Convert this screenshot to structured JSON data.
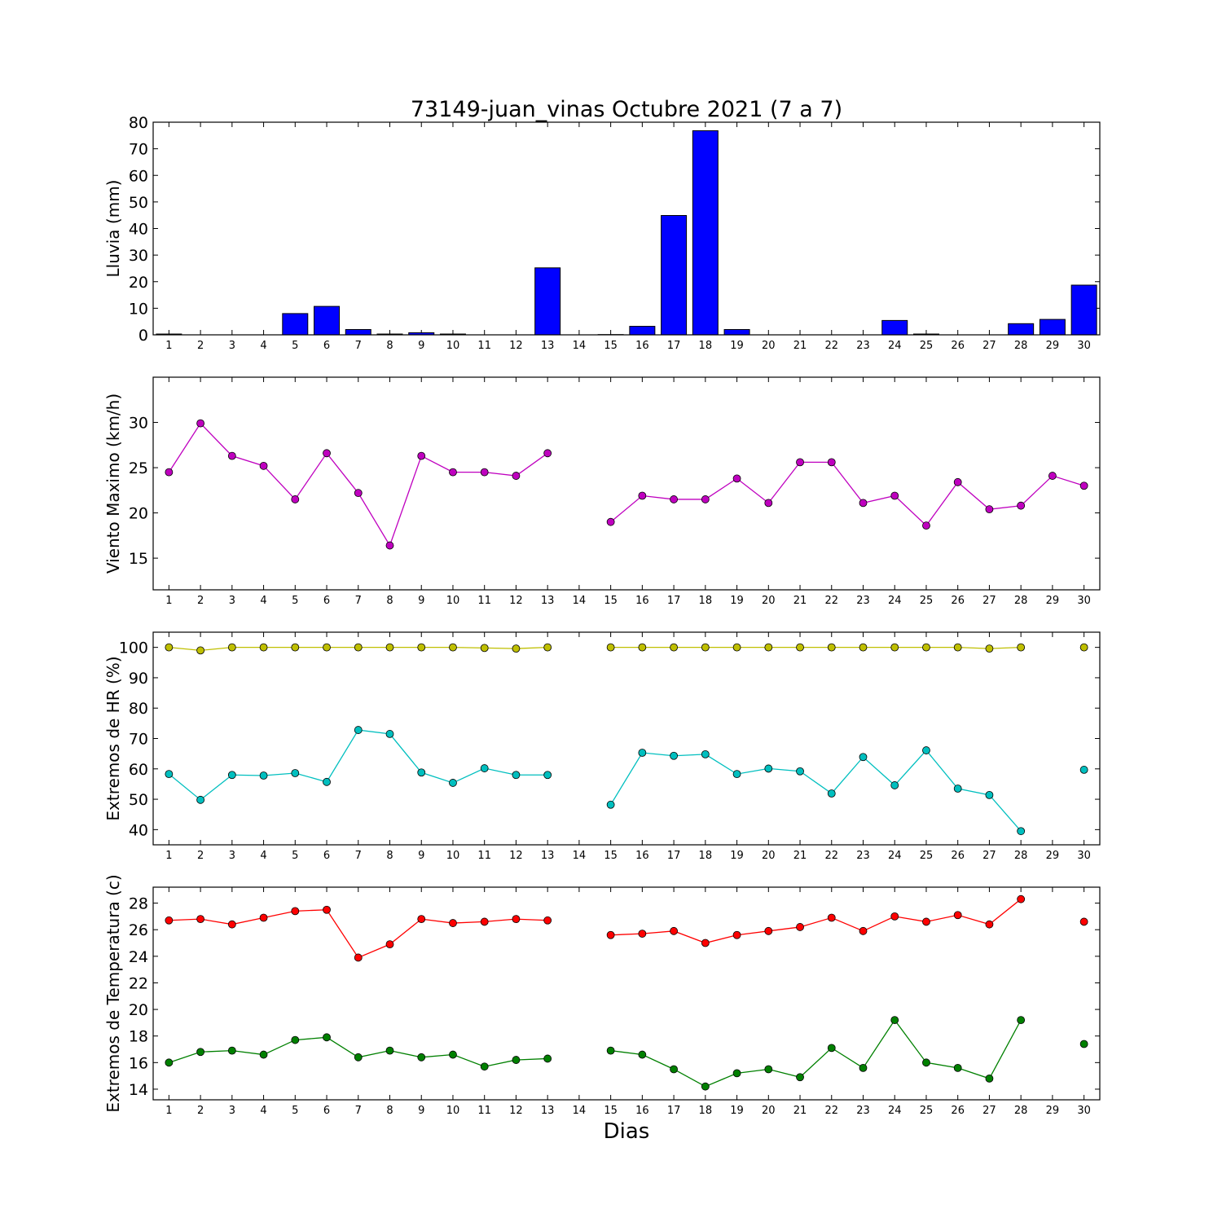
{
  "title": "73149-juan_vinas Octubre 2021  (7 a 7)",
  "xlabel": "Dias",
  "chart_data": [
    {
      "type": "bar",
      "ylabel": "Lluvia (mm)",
      "xlim": [
        0.5,
        30.5
      ],
      "ylim": [
        0,
        80
      ],
      "yticks": [
        0,
        10,
        20,
        30,
        40,
        50,
        60,
        70,
        80
      ],
      "x": [
        1,
        2,
        3,
        4,
        5,
        6,
        7,
        8,
        9,
        10,
        11,
        12,
        13,
        14,
        15,
        16,
        17,
        18,
        19,
        20,
        21,
        22,
        23,
        24,
        25,
        26,
        27,
        28,
        29,
        30
      ],
      "series": [
        {
          "color": "#0000ff",
          "values": [
            0.3,
            0,
            0,
            0,
            8.0,
            10.7,
            2.0,
            0.3,
            0.8,
            0.3,
            0,
            0,
            25.2,
            0,
            0.1,
            3.2,
            44.9,
            76.8,
            2.0,
            0,
            0,
            0,
            0,
            5.4,
            0.3,
            0,
            0,
            4.2,
            5.8,
            18.7
          ]
        }
      ]
    },
    {
      "type": "line",
      "ylabel": "Viento Maximo (km/h)",
      "xlim": [
        0.5,
        30.5
      ],
      "ylim": [
        11.5,
        35
      ],
      "yticks": [
        15,
        20,
        25,
        30
      ],
      "x": [
        1,
        2,
        3,
        4,
        5,
        6,
        7,
        8,
        9,
        10,
        11,
        12,
        13,
        14,
        15,
        16,
        17,
        18,
        19,
        20,
        21,
        22,
        23,
        24,
        25,
        26,
        27,
        28,
        29,
        30
      ],
      "series": [
        {
          "color": "#bf00bf",
          "values": [
            24.5,
            29.9,
            26.3,
            25.2,
            21.5,
            26.6,
            22.2,
            16.4,
            26.3,
            24.5,
            24.5,
            24.1,
            26.6,
            null,
            19.0,
            21.9,
            21.5,
            21.5,
            23.8,
            21.1,
            25.6,
            25.6,
            21.1,
            21.9,
            18.6,
            23.4,
            20.4,
            20.8,
            24.1,
            23.0
          ]
        }
      ]
    },
    {
      "type": "line",
      "ylabel": "Extremos de HR (%)",
      "xlim": [
        0.5,
        30.5
      ],
      "ylim": [
        35,
        105
      ],
      "yticks": [
        40,
        50,
        60,
        70,
        80,
        90,
        100
      ],
      "x": [
        1,
        2,
        3,
        4,
        5,
        6,
        7,
        8,
        9,
        10,
        11,
        12,
        13,
        14,
        15,
        16,
        17,
        18,
        19,
        20,
        21,
        22,
        23,
        24,
        25,
        26,
        27,
        28,
        29,
        30
      ],
      "series": [
        {
          "color": "#bfbf00",
          "values": [
            100,
            99,
            100,
            100,
            100,
            100,
            100,
            100,
            100,
            100,
            99.8,
            99.6,
            100,
            null,
            100,
            100,
            100,
            100,
            100,
            100,
            100,
            100,
            100,
            100,
            100,
            100,
            99.6,
            100,
            null,
            100
          ]
        },
        {
          "color": "#00bfbf",
          "values": [
            58.3,
            49.8,
            58.0,
            57.8,
            58.6,
            55.7,
            72.8,
            71.5,
            58.8,
            55.4,
            60.2,
            58.0,
            58.0,
            null,
            48.2,
            65.3,
            64.3,
            64.8,
            58.3,
            60.1,
            59.2,
            51.9,
            63.9,
            54.6,
            66.1,
            53.5,
            51.4,
            39.5,
            null,
            59.7
          ]
        }
      ]
    },
    {
      "type": "line",
      "ylabel": "Extremos de Temperatura (c)",
      "xlim": [
        0.5,
        30.5
      ],
      "ylim": [
        13.2,
        29.2
      ],
      "yticks": [
        14,
        16,
        18,
        20,
        22,
        24,
        26,
        28
      ],
      "x": [
        1,
        2,
        3,
        4,
        5,
        6,
        7,
        8,
        9,
        10,
        11,
        12,
        13,
        14,
        15,
        16,
        17,
        18,
        19,
        20,
        21,
        22,
        23,
        24,
        25,
        26,
        27,
        28,
        29,
        30
      ],
      "series": [
        {
          "color": "#ff0000",
          "values": [
            26.7,
            26.8,
            26.4,
            26.9,
            27.4,
            27.5,
            23.9,
            24.9,
            26.8,
            26.5,
            26.6,
            26.8,
            26.7,
            null,
            25.6,
            25.7,
            25.9,
            25.0,
            25.6,
            25.9,
            26.2,
            26.9,
            25.9,
            27.0,
            26.6,
            27.1,
            26.4,
            28.3,
            null,
            26.6
          ]
        },
        {
          "color": "#008000",
          "values": [
            16.0,
            16.8,
            16.9,
            16.6,
            17.7,
            17.9,
            16.4,
            16.9,
            16.4,
            16.6,
            15.7,
            16.2,
            16.3,
            null,
            16.9,
            16.6,
            15.5,
            14.2,
            15.2,
            15.5,
            14.9,
            17.1,
            15.6,
            19.2,
            16.0,
            15.6,
            14.8,
            19.2,
            null,
            17.4
          ]
        }
      ]
    }
  ]
}
